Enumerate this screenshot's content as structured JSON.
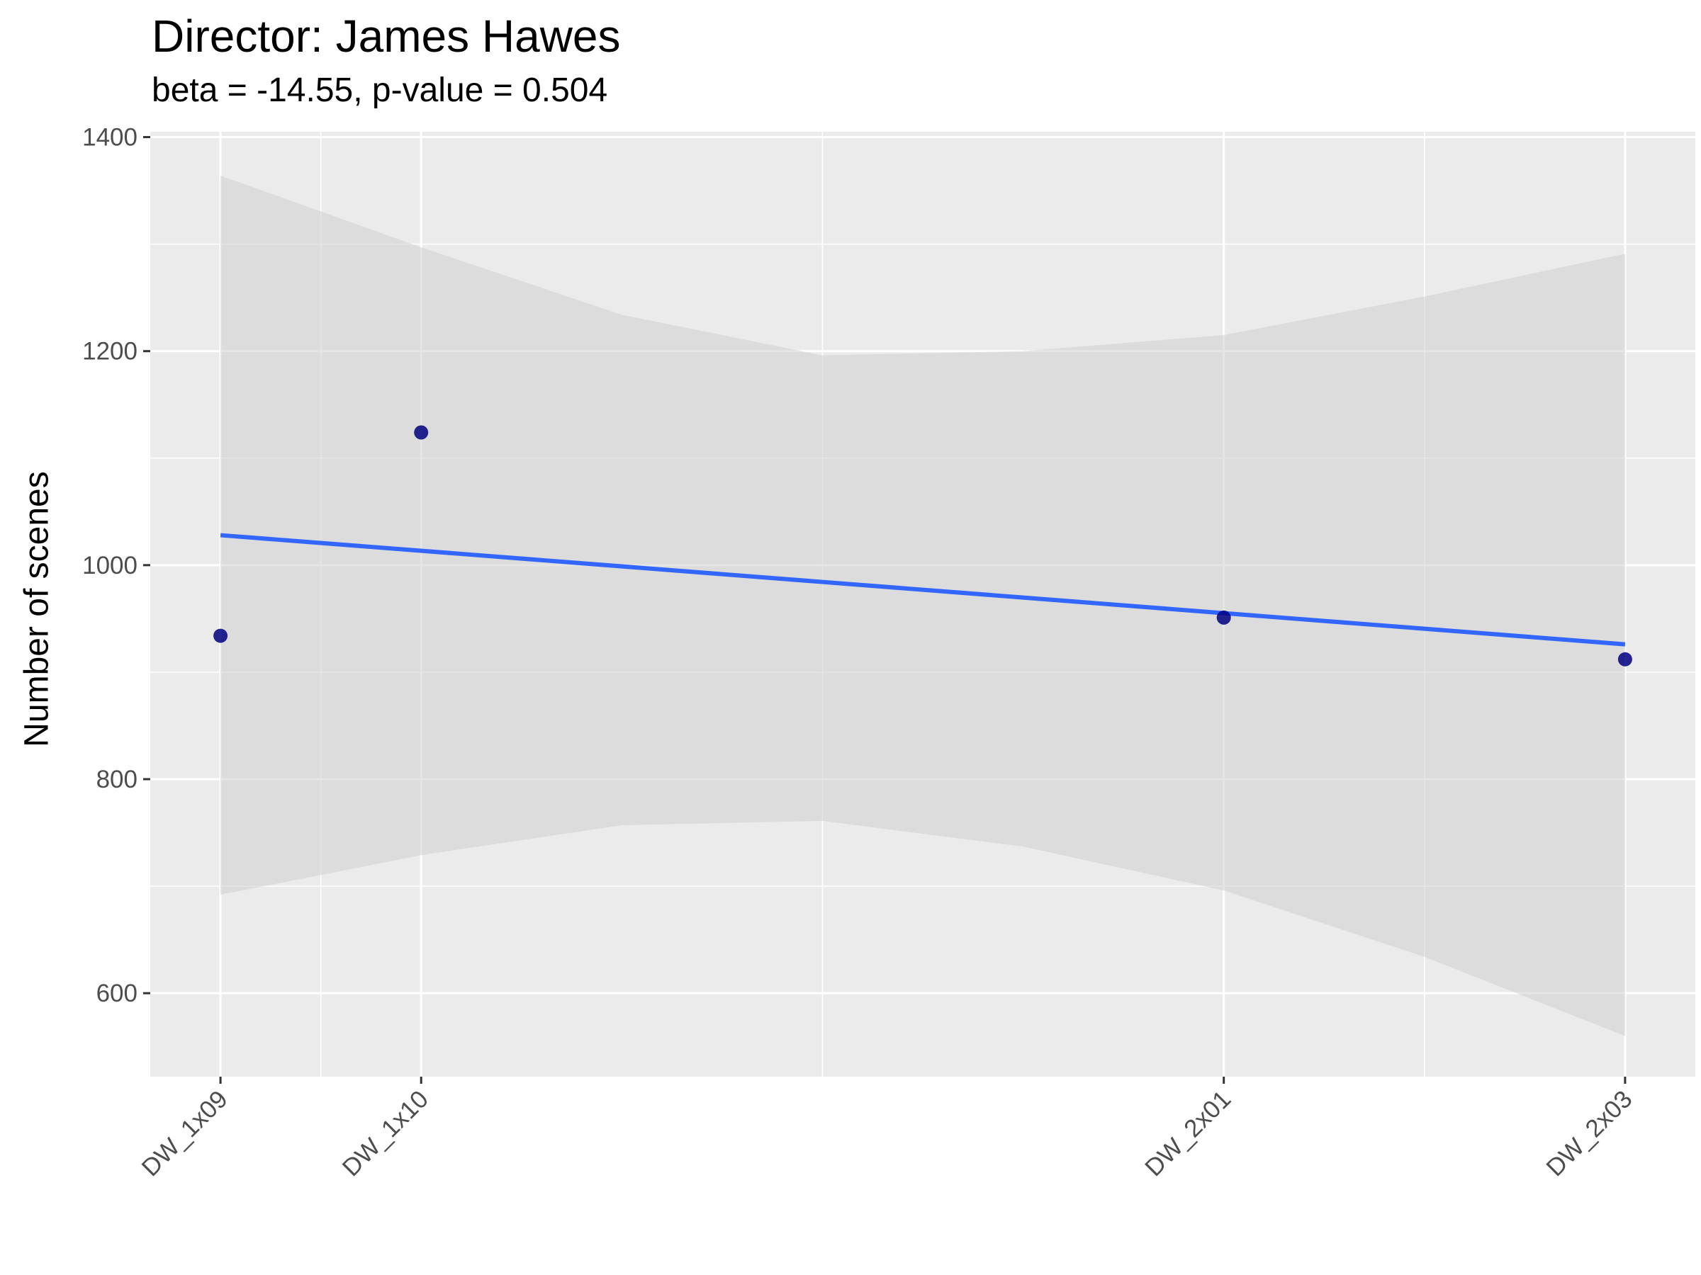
{
  "chart_data": {
    "type": "scatter",
    "title": "Director: James Hawes",
    "subtitle": "beta = -14.55, p-value = 0.504",
    "xlabel": "",
    "ylabel": "Number of scenes",
    "categories": [
      "DW_1x09",
      "DW_1x10",
      "DW_2x01",
      "DW_2x03"
    ],
    "x_positions": [
      1,
      2,
      6,
      8
    ],
    "xlim": [
      0.65,
      8.35
    ],
    "ylim": [
      522,
      1405
    ],
    "y_ticks": [
      600,
      800,
      1000,
      1200,
      1400
    ],
    "points": [
      {
        "x": "DW_1x09",
        "y": 934
      },
      {
        "x": "DW_1x10",
        "y": 1124
      },
      {
        "x": "DW_2x01",
        "y": 951
      },
      {
        "x": "DW_2x03",
        "y": 912
      }
    ],
    "fit_line": {
      "x_start": 1,
      "y_start": 1028,
      "x_end": 8,
      "y_end": 926
    },
    "confidence_band": {
      "x": [
        1,
        2,
        3,
        4,
        5,
        6,
        7,
        8
      ],
      "upper": [
        1364,
        1297,
        1234,
        1196,
        1200,
        1215,
        1251,
        1291
      ],
      "lower": [
        692,
        729,
        757,
        761,
        737,
        696,
        634,
        560
      ]
    },
    "grid": true,
    "legend": "none",
    "colors": {
      "panel_background": "#ebebeb",
      "grid": "#ffffff",
      "points": "#000080",
      "fit_line": "#3366ff",
      "confidence_band": "#d0d0d0"
    }
  }
}
